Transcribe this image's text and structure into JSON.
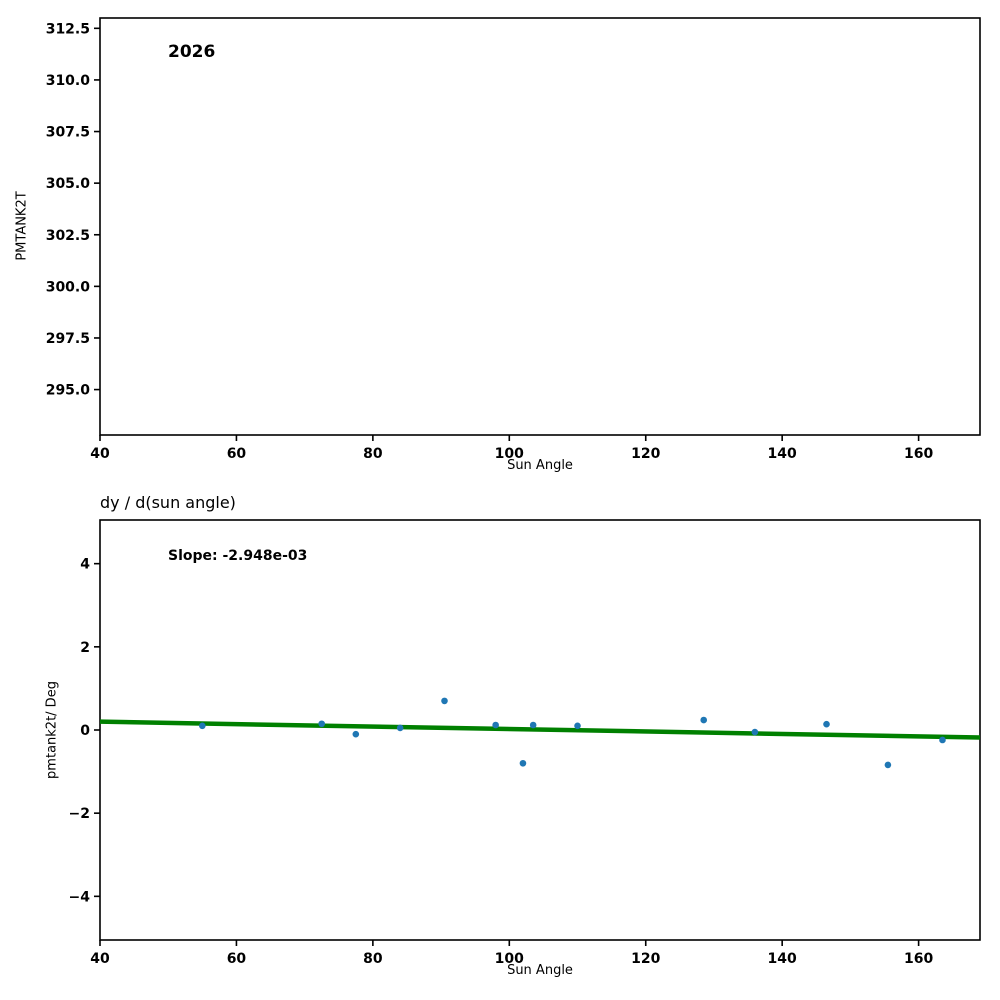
{
  "colors": {
    "scatter": "#1f77b4",
    "trend": "#008000",
    "axis": "#000000",
    "text": "#000000"
  },
  "chart_data": [
    {
      "type": "scatter",
      "annotation": "2026",
      "xlabel": "Sun Angle",
      "ylabel": "PMTANK2T",
      "xlim": [
        40,
        169
      ],
      "ylim": [
        292.8,
        313.0
      ],
      "xtick_values": [
        40,
        60,
        80,
        100,
        120,
        140,
        160
      ],
      "xtick_labels": [
        "40",
        "60",
        "80",
        "100",
        "120",
        "140",
        "160"
      ],
      "ytick_values": [
        295.0,
        297.5,
        300.0,
        302.5,
        305.0,
        307.5,
        310.0,
        312.5
      ],
      "ytick_labels": [
        "295.0",
        "297.5",
        "300.0",
        "302.5",
        "305.0",
        "307.5",
        "310.0",
        "312.5"
      ],
      "grid": false,
      "points": []
    },
    {
      "type": "scatter",
      "title": "dy / d(sun angle)",
      "annotation": "Slope: -2.948e-03",
      "xlabel": "Sun Angle",
      "ylabel": "pmtank2t/ Deg",
      "xlim": [
        40,
        169
      ],
      "ylim": [
        -5.05,
        5.05
      ],
      "xtick_values": [
        40,
        60,
        80,
        100,
        120,
        140,
        160
      ],
      "xtick_labels": [
        "40",
        "60",
        "80",
        "100",
        "120",
        "140",
        "160"
      ],
      "ytick_values": [
        -4,
        -2,
        0,
        2,
        4
      ],
      "ytick_labels": [
        "−4",
        "−2",
        "0",
        "2",
        "4"
      ],
      "grid": false,
      "points": [
        {
          "x": 55.0,
          "y": 0.1
        },
        {
          "x": 72.5,
          "y": 0.15
        },
        {
          "x": 77.5,
          "y": -0.1
        },
        {
          "x": 84.0,
          "y": 0.05
        },
        {
          "x": 90.5,
          "y": 0.7
        },
        {
          "x": 98.0,
          "y": 0.12
        },
        {
          "x": 102.0,
          "y": -0.8
        },
        {
          "x": 103.5,
          "y": 0.12
        },
        {
          "x": 110.0,
          "y": 0.1
        },
        {
          "x": 128.5,
          "y": 0.24
        },
        {
          "x": 136.0,
          "y": -0.05
        },
        {
          "x": 146.5,
          "y": 0.14
        },
        {
          "x": 155.5,
          "y": -0.84
        },
        {
          "x": 163.5,
          "y": -0.24
        }
      ],
      "trend": {
        "slope": -0.002948,
        "intercept": 0.318,
        "x": [
          40,
          169
        ]
      }
    }
  ]
}
